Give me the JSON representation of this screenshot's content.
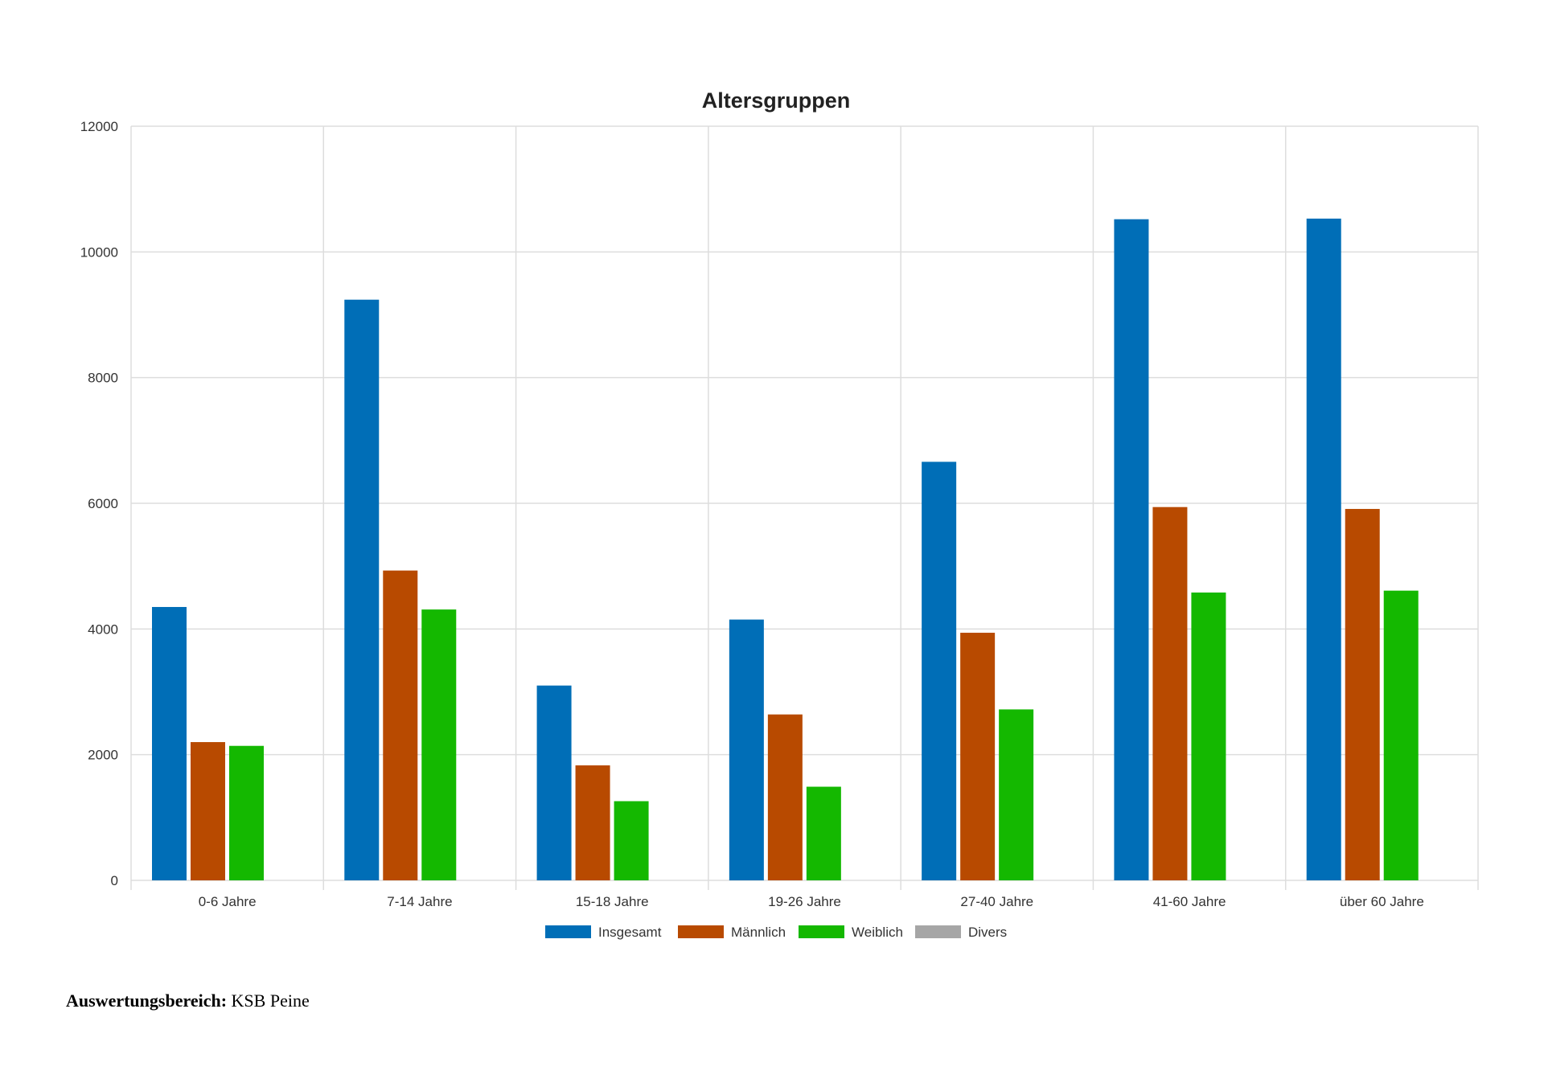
{
  "chart_data": {
    "type": "bar",
    "title": "Altersgruppen",
    "xlabel": "",
    "ylabel": "",
    "ylim": [
      0,
      12000
    ],
    "yticks": [
      0,
      2000,
      4000,
      6000,
      8000,
      10000,
      12000
    ],
    "categories": [
      "0-6 Jahre",
      "7-14 Jahre",
      "15-18 Jahre",
      "19-26 Jahre",
      "27-40 Jahre",
      "41-60 Jahre",
      "über 60 Jahre"
    ],
    "series": [
      {
        "name": "Insgesamt",
        "color": "#006eb7",
        "values": [
          4350,
          9240,
          3100,
          4150,
          6660,
          10520,
          10530
        ]
      },
      {
        "name": "Männlich",
        "color": "#b84a00",
        "values": [
          2200,
          4930,
          1830,
          2640,
          3940,
          5940,
          5910
        ]
      },
      {
        "name": "Weiblich",
        "color": "#14b800",
        "values": [
          2140,
          4310,
          1260,
          1490,
          2720,
          4580,
          4610
        ]
      },
      {
        "name": "Divers",
        "color": "#a6a6a6",
        "values": [
          0,
          0,
          0,
          0,
          0,
          0,
          0
        ]
      }
    ],
    "grid": true,
    "legend_position": "bottom-center"
  },
  "footer": {
    "label": "Auswertungsbereich:",
    "value": "KSB Peine"
  }
}
